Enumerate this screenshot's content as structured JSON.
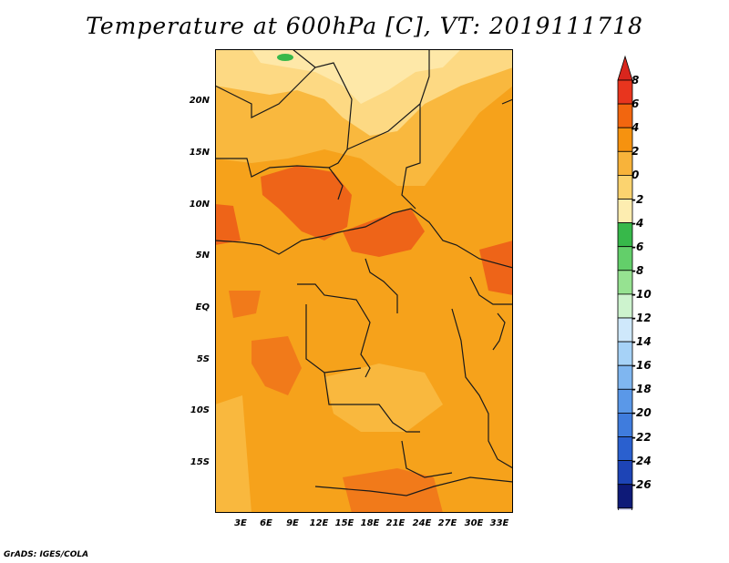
{
  "title": "Temperature at 600hPa [C], VT: 2019111718",
  "credit": "GrADS: IGES/COLA",
  "y_ticks": [
    "20N",
    "15N",
    "10N",
    "5N",
    "EQ",
    "5S",
    "10S",
    "15S"
  ],
  "x_ticks": [
    "3E",
    "6E",
    "9E",
    "12E",
    "15E",
    "18E",
    "21E",
    "24E",
    "27E",
    "30E",
    "33E"
  ],
  "colorbar": {
    "labels": [
      "8",
      "6",
      "4",
      "2",
      "0",
      "-2",
      "-4",
      "-6",
      "-8",
      "-10",
      "-12",
      "-14",
      "-16",
      "-18",
      "-20",
      "-22",
      "-24",
      "-26"
    ],
    "colors": [
      "#e8351e",
      "#f2660f",
      "#f6920f",
      "#f8b33a",
      "#fbd36f",
      "#fdedb0",
      "#37b84a",
      "#63cf6a",
      "#96e291",
      "#cdf3ce",
      "#cfe8fb",
      "#a6d2f7",
      "#7fb6f0",
      "#5a98e8",
      "#3f7cdd",
      "#2a60cf",
      "#1d44b6",
      "#0e1a78"
    ],
    "top_arrow_color": "#d8261d",
    "bottom_arrow_color": "#dcdcf5"
  },
  "map_colors": {
    "base": "#f6a21b",
    "warm": "#f17a1a",
    "hot": "#ee6418",
    "cool": "#f9b83e",
    "pale": "#fdd983",
    "palest": "#fee8a8",
    "green": "#37b84a",
    "border": "#1a1a1a"
  }
}
